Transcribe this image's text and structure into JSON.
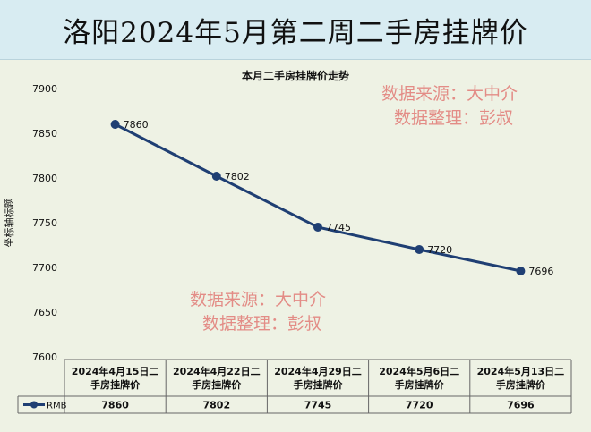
{
  "header": {
    "title": "洛阳2024年5月第二周二手房挂牌价"
  },
  "colors": {
    "line": "#1f3f73",
    "header_bg": "#d8ecf2",
    "plot_bg": "#eef2e4",
    "watermark": "#e38c86"
  },
  "watermark": {
    "line1": "数据来源：大中介",
    "line2": "数据整理：彭叔"
  },
  "chart_data": {
    "type": "line",
    "title": "本月二手房挂牌价走势",
    "ylabel": "坐标轴标题",
    "xlabel": "",
    "ylim": [
      7600,
      7900
    ],
    "yticks": [
      7600,
      7650,
      7700,
      7750,
      7800,
      7850,
      7900
    ],
    "grid": false,
    "legend": "data-table",
    "categories": [
      "2024年4月15日二手房挂牌价",
      "2024年4月22日二手房挂牌价",
      "2024年4月29日二手房挂牌价",
      "2024年5月6日二手房挂牌价",
      "2024年5月13日二手房挂牌价"
    ],
    "series": [
      {
        "name": "RMB",
        "values": [
          7860,
          7802,
          7745,
          7720,
          7696
        ]
      }
    ]
  }
}
